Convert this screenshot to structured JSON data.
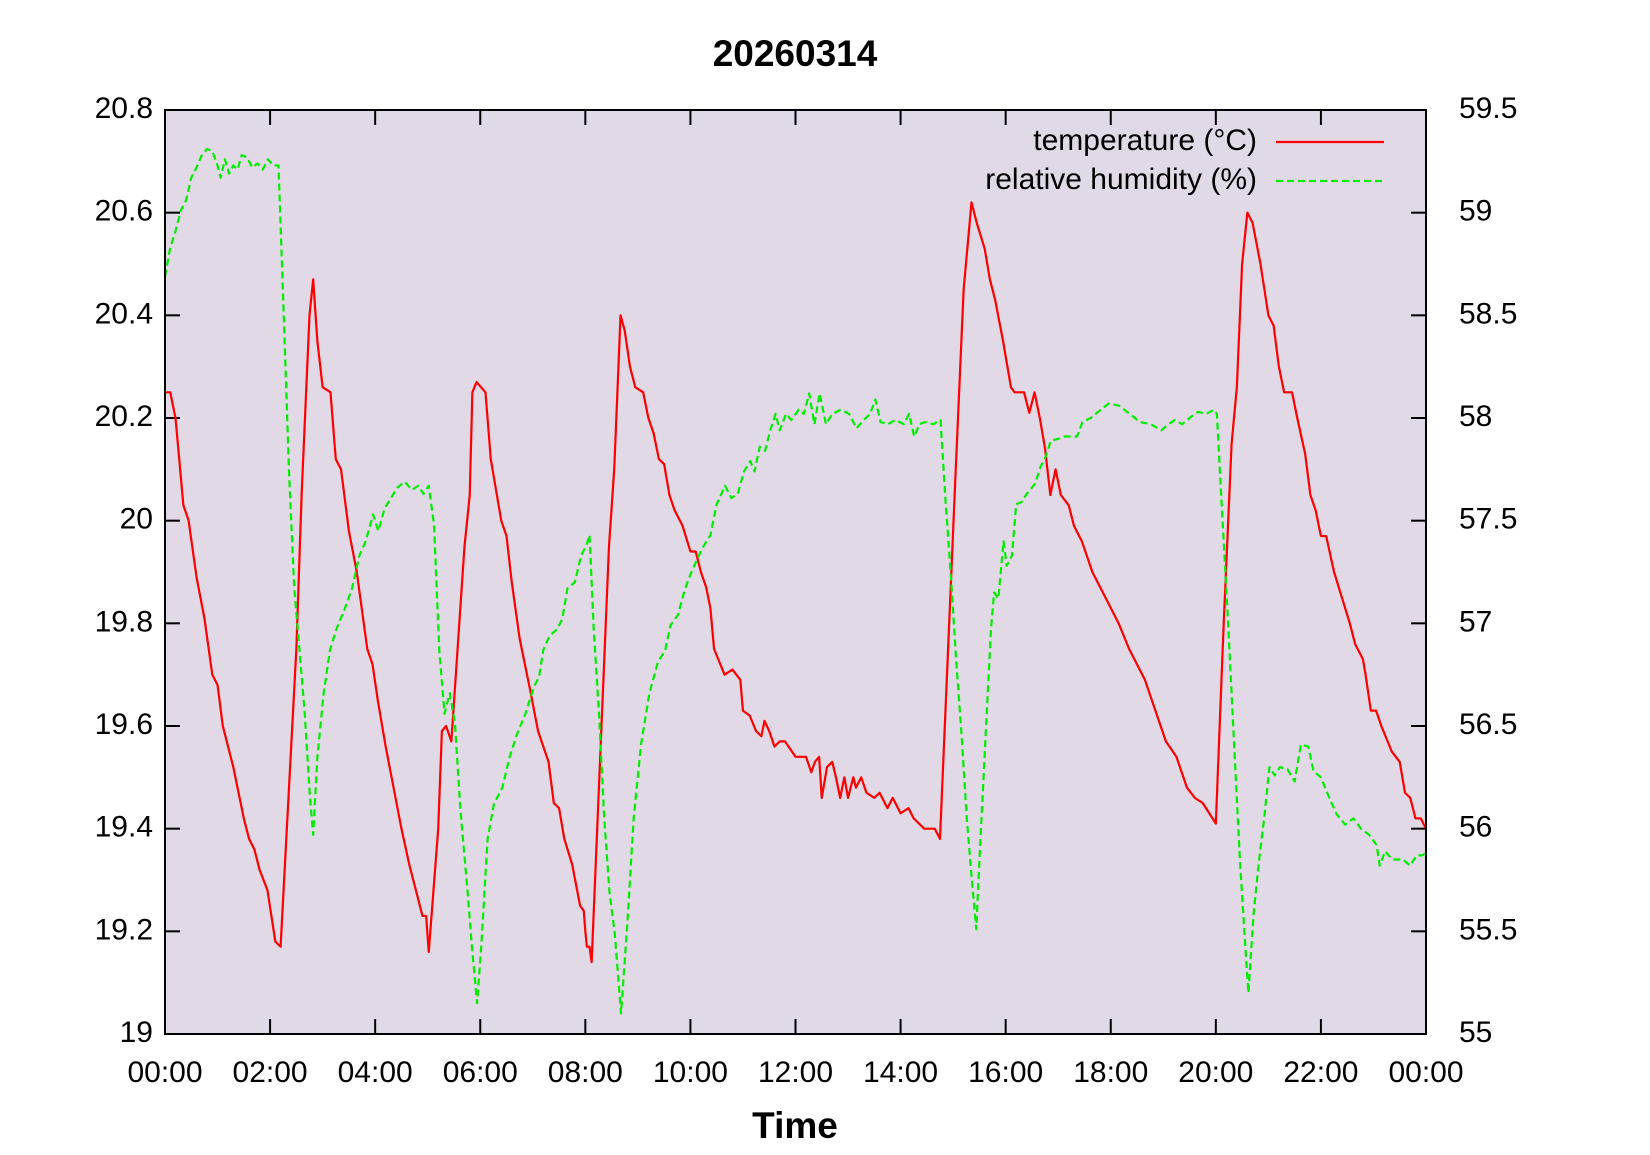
{
  "chart_data": {
    "type": "line",
    "title": "20260314",
    "x_label": "Time",
    "xlim": [
      0,
      24
    ],
    "xticks": [
      {
        "value": 0,
        "label": "00:00"
      },
      {
        "value": 2,
        "label": "02:00"
      },
      {
        "value": 4,
        "label": "04:00"
      },
      {
        "value": 6,
        "label": "06:00"
      },
      {
        "value": 8,
        "label": "08:00"
      },
      {
        "value": 10,
        "label": "10:00"
      },
      {
        "value": 12,
        "label": "12:00"
      },
      {
        "value": 14,
        "label": "14:00"
      },
      {
        "value": 16,
        "label": "16:00"
      },
      {
        "value": 18,
        "label": "18:00"
      },
      {
        "value": 20,
        "label": "20:00"
      },
      {
        "value": 22,
        "label": "22:00"
      },
      {
        "value": 24,
        "label": "00:00"
      }
    ],
    "ylim": [
      19,
      20.8
    ],
    "yticks": [
      19,
      19.2,
      19.4,
      19.6,
      19.8,
      20,
      20.2,
      20.4,
      20.6,
      20.8
    ],
    "y2lim": [
      55,
      59.5
    ],
    "y2ticks": [
      55,
      55.5,
      56,
      56.5,
      57,
      57.5,
      58,
      58.5,
      59,
      59.5
    ],
    "legend": "top right",
    "plot_background": "#e1d9e6",
    "series": [
      {
        "name": "temperature (°C)",
        "color": "#ff0000",
        "line_style": "solid",
        "x": [
          0,
          0.1,
          0.2,
          0.35,
          0.45,
          0.6,
          0.75,
          0.9,
          1.0,
          1.1,
          1.2,
          1.3,
          1.5,
          1.6,
          1.7,
          1.8,
          1.95,
          2.1,
          2.2,
          2.5,
          2.6,
          2.75,
          2.82,
          2.9,
          3.0,
          3.15,
          3.25,
          3.35,
          3.5,
          3.65,
          3.85,
          3.95,
          4.05,
          4.2,
          4.35,
          4.5,
          4.65,
          4.8,
          4.9,
          4.97,
          5.02,
          5.2,
          5.27,
          5.35,
          5.45,
          5.7,
          5.8,
          5.85,
          5.93,
          6.1,
          6.2,
          6.4,
          6.5,
          6.6,
          6.75,
          6.95,
          7.1,
          7.3,
          7.4,
          7.5,
          7.6,
          7.75,
          7.9,
          7.97,
          8.0,
          8.03,
          8.08,
          8.12,
          8.45,
          8.55,
          8.67,
          8.75,
          8.85,
          8.95,
          9.1,
          9.2,
          9.3,
          9.4,
          9.5,
          9.6,
          9.7,
          9.85,
          10.0,
          10.1,
          10.2,
          10.3,
          10.38,
          10.45,
          10.65,
          10.8,
          10.95,
          11.0,
          11.13,
          11.25,
          11.35,
          11.41,
          11.5,
          11.6,
          11.7,
          11.8,
          12.0,
          12.2,
          12.3,
          12.37,
          12.45,
          12.5,
          12.6,
          12.7,
          12.77,
          12.85,
          12.93,
          13.0,
          13.1,
          13.15,
          13.25,
          13.35,
          13.5,
          13.6,
          13.75,
          13.85,
          14.0,
          14.15,
          14.25,
          14.45,
          14.65,
          14.75,
          15.05,
          15.2,
          15.35,
          15.45,
          15.6,
          15.7,
          15.8,
          15.95,
          16.1,
          16.17,
          16.35,
          16.45,
          16.55,
          16.65,
          16.75,
          16.85,
          16.95,
          17.05,
          17.2,
          17.3,
          17.45,
          17.65,
          17.8,
          17.95,
          18.15,
          18.35,
          18.5,
          18.65,
          18.85,
          19.05,
          19.25,
          19.45,
          19.6,
          19.75,
          20.0,
          20.15,
          20.3,
          20.4,
          20.5,
          20.6,
          20.7,
          20.85,
          21.0,
          21.1,
          21.2,
          21.3,
          21.45,
          21.55,
          21.7,
          21.8,
          21.9,
          22.0,
          22.1,
          22.25,
          22.4,
          22.55,
          22.65,
          22.8,
          22.85,
          22.95,
          23.05,
          23.15,
          23.35,
          23.5,
          23.6,
          23.7,
          23.8,
          23.9,
          24.0
        ],
        "values": [
          20.25,
          20.25,
          20.2,
          20.03,
          20.0,
          19.89,
          19.81,
          19.7,
          19.68,
          19.6,
          19.56,
          19.52,
          19.42,
          19.38,
          19.36,
          19.32,
          19.28,
          19.18,
          19.17,
          19.75,
          20.05,
          20.4,
          20.47,
          20.35,
          20.26,
          20.25,
          20.12,
          20.1,
          19.98,
          19.9,
          19.75,
          19.72,
          19.65,
          19.56,
          19.48,
          19.4,
          19.33,
          19.27,
          19.23,
          19.23,
          19.16,
          19.4,
          19.59,
          19.6,
          19.57,
          19.95,
          20.05,
          20.25,
          20.27,
          20.25,
          20.12,
          20.0,
          19.97,
          19.88,
          19.77,
          19.67,
          19.59,
          19.53,
          19.45,
          19.44,
          19.38,
          19.33,
          19.25,
          19.24,
          19.2,
          19.17,
          19.17,
          19.14,
          19.95,
          20.1,
          20.4,
          20.37,
          20.3,
          20.26,
          20.25,
          20.2,
          20.17,
          20.12,
          20.11,
          20.05,
          20.02,
          19.99,
          19.94,
          19.94,
          19.9,
          19.87,
          19.83,
          19.75,
          19.7,
          19.71,
          19.69,
          19.63,
          19.62,
          19.59,
          19.58,
          19.61,
          19.59,
          19.56,
          19.57,
          19.57,
          19.54,
          19.54,
          19.51,
          19.53,
          19.54,
          19.46,
          19.52,
          19.53,
          19.5,
          19.46,
          19.5,
          19.46,
          19.5,
          19.48,
          19.5,
          19.47,
          19.46,
          19.47,
          19.44,
          19.46,
          19.43,
          19.44,
          19.42,
          19.4,
          19.4,
          19.38,
          20.1,
          20.45,
          20.62,
          20.58,
          20.53,
          20.47,
          20.43,
          20.35,
          20.26,
          20.25,
          20.25,
          20.21,
          20.25,
          20.2,
          20.14,
          20.05,
          20.1,
          20.05,
          20.03,
          19.99,
          19.96,
          19.9,
          19.87,
          19.84,
          19.8,
          19.75,
          19.72,
          19.69,
          19.63,
          19.57,
          19.54,
          19.48,
          19.46,
          19.45,
          19.41,
          19.8,
          20.15,
          20.26,
          20.5,
          20.6,
          20.58,
          20.5,
          20.4,
          20.38,
          20.3,
          20.25,
          20.25,
          20.2,
          20.13,
          20.05,
          20.02,
          19.97,
          19.97,
          19.9,
          19.85,
          19.8,
          19.76,
          19.73,
          19.7,
          19.63,
          19.63,
          19.6,
          19.55,
          19.53,
          19.47,
          19.46,
          19.42,
          19.42,
          19.4
        ]
      },
      {
        "name": "relative humidity (%)",
        "color": "#00ee00",
        "line_style": "dashed",
        "axis": "y2",
        "x": [
          0,
          0.1,
          0.2,
          0.3,
          0.4,
          0.5,
          0.6,
          0.7,
          0.8,
          0.9,
          1.0,
          1.06,
          1.14,
          1.22,
          1.3,
          1.38,
          1.46,
          1.56,
          1.66,
          1.76,
          1.86,
          1.96,
          2.06,
          2.16,
          2.26,
          2.36,
          2.46,
          2.56,
          2.66,
          2.76,
          2.82,
          2.9,
          3.02,
          3.14,
          3.26,
          3.42,
          3.56,
          3.7,
          3.82,
          3.96,
          4.06,
          4.18,
          4.3,
          4.42,
          4.56,
          4.7,
          4.82,
          4.92,
          5.02,
          5.12,
          5.22,
          5.32,
          5.42,
          5.52,
          5.62,
          5.76,
          5.84,
          5.94,
          6.02,
          6.14,
          6.26,
          6.42,
          6.56,
          6.7,
          6.86,
          7.02,
          7.12,
          7.2,
          7.32,
          7.46,
          7.56,
          7.66,
          7.8,
          7.92,
          8.02,
          8.08,
          8.16,
          8.26,
          8.36,
          8.46,
          8.56,
          8.68,
          8.8,
          8.92,
          9.06,
          9.22,
          9.38,
          9.52,
          9.62,
          9.76,
          9.9,
          10.02,
          10.16,
          10.26,
          10.38,
          10.5,
          10.66,
          10.78,
          10.9,
          11.02,
          11.14,
          11.22,
          11.32,
          11.42,
          11.52,
          11.62,
          11.7,
          11.82,
          11.92,
          12.06,
          12.16,
          12.26,
          12.36,
          12.46,
          12.58,
          12.7,
          12.86,
          13.02,
          13.16,
          13.3,
          13.42,
          13.52,
          13.62,
          13.76,
          13.9,
          14.06,
          14.16,
          14.26,
          14.36,
          14.46,
          14.62,
          14.76,
          14.86,
          14.96,
          15.06,
          15.16,
          15.26,
          15.36,
          15.44,
          15.52,
          15.62,
          15.72,
          15.78,
          15.86,
          15.96,
          16.02,
          16.12,
          16.2,
          16.3,
          16.4,
          16.56,
          16.66,
          16.76,
          16.86,
          17.02,
          17.12,
          17.26,
          17.36,
          17.46,
          17.62,
          17.76,
          17.96,
          18.16,
          18.36,
          18.56,
          18.76,
          18.96,
          19.1,
          19.22,
          19.36,
          19.5,
          19.66,
          19.82,
          19.96,
          20.02,
          20.1,
          20.22,
          20.36,
          20.46,
          20.56,
          20.62,
          20.72,
          20.82,
          20.92,
          21.02,
          21.12,
          21.22,
          21.36,
          21.5,
          21.62,
          21.76,
          21.86,
          22.0,
          22.16,
          22.3,
          22.46,
          22.62,
          22.76,
          22.92,
          23.06,
          23.12,
          23.22,
          23.36,
          23.56,
          23.7,
          23.82,
          23.92,
          24
        ],
        "values": [
          58.69,
          58.83,
          58.91,
          59.01,
          59.06,
          59.17,
          59.22,
          59.28,
          59.31,
          59.3,
          59.23,
          59.17,
          59.26,
          59.19,
          59.23,
          59.21,
          59.28,
          59.27,
          59.22,
          59.24,
          59.21,
          59.26,
          59.23,
          59.23,
          58.5,
          57.74,
          57.17,
          56.87,
          56.56,
          56.15,
          55.97,
          56.35,
          56.66,
          56.87,
          56.97,
          57.07,
          57.17,
          57.33,
          57.4,
          57.53,
          57.45,
          57.56,
          57.61,
          57.66,
          57.69,
          57.65,
          57.67,
          57.63,
          57.67,
          57.48,
          56.87,
          56.56,
          56.66,
          56.51,
          56.1,
          55.69,
          55.43,
          55.15,
          55.43,
          55.95,
          56.12,
          56.2,
          56.35,
          56.46,
          56.56,
          56.69,
          56.74,
          56.87,
          56.94,
          56.97,
          57.02,
          57.17,
          57.2,
          57.33,
          57.38,
          57.43,
          56.97,
          56.56,
          56.05,
          55.69,
          55.49,
          55.1,
          55.54,
          56.05,
          56.41,
          56.66,
          56.81,
          56.87,
          56.99,
          57.04,
          57.17,
          57.25,
          57.33,
          57.38,
          57.43,
          57.58,
          57.67,
          57.61,
          57.63,
          57.74,
          57.79,
          57.74,
          57.86,
          57.84,
          57.94,
          58.02,
          57.94,
          58.02,
          57.99,
          58.04,
          58.02,
          58.12,
          57.97,
          58.12,
          57.97,
          58.02,
          58.04,
          58.02,
          57.95,
          57.99,
          58.02,
          58.09,
          57.98,
          57.97,
          57.99,
          57.97,
          58.02,
          57.91,
          57.97,
          57.98,
          57.97,
          57.99,
          57.58,
          57.22,
          56.81,
          56.46,
          56.05,
          55.74,
          55.51,
          55.95,
          56.46,
          56.97,
          57.15,
          57.12,
          57.4,
          57.28,
          57.33,
          57.58,
          57.59,
          57.63,
          57.68,
          57.76,
          57.81,
          57.89,
          57.9,
          57.91,
          57.91,
          57.91,
          57.98,
          58.0,
          58.03,
          58.07,
          58.06,
          58.02,
          57.98,
          57.97,
          57.94,
          57.97,
          57.99,
          57.97,
          58.0,
          58.03,
          58.02,
          58.04,
          58.02,
          57.63,
          57.07,
          56.35,
          55.84,
          55.43,
          55.2,
          55.59,
          55.84,
          56.05,
          56.3,
          56.26,
          56.3,
          56.29,
          56.23,
          56.41,
          56.4,
          56.28,
          56.25,
          56.15,
          56.07,
          56.02,
          56.05,
          56.0,
          55.97,
          55.92,
          55.82,
          55.89,
          55.85,
          55.85,
          55.82,
          55.87,
          55.87,
          55.88
        ]
      }
    ]
  }
}
